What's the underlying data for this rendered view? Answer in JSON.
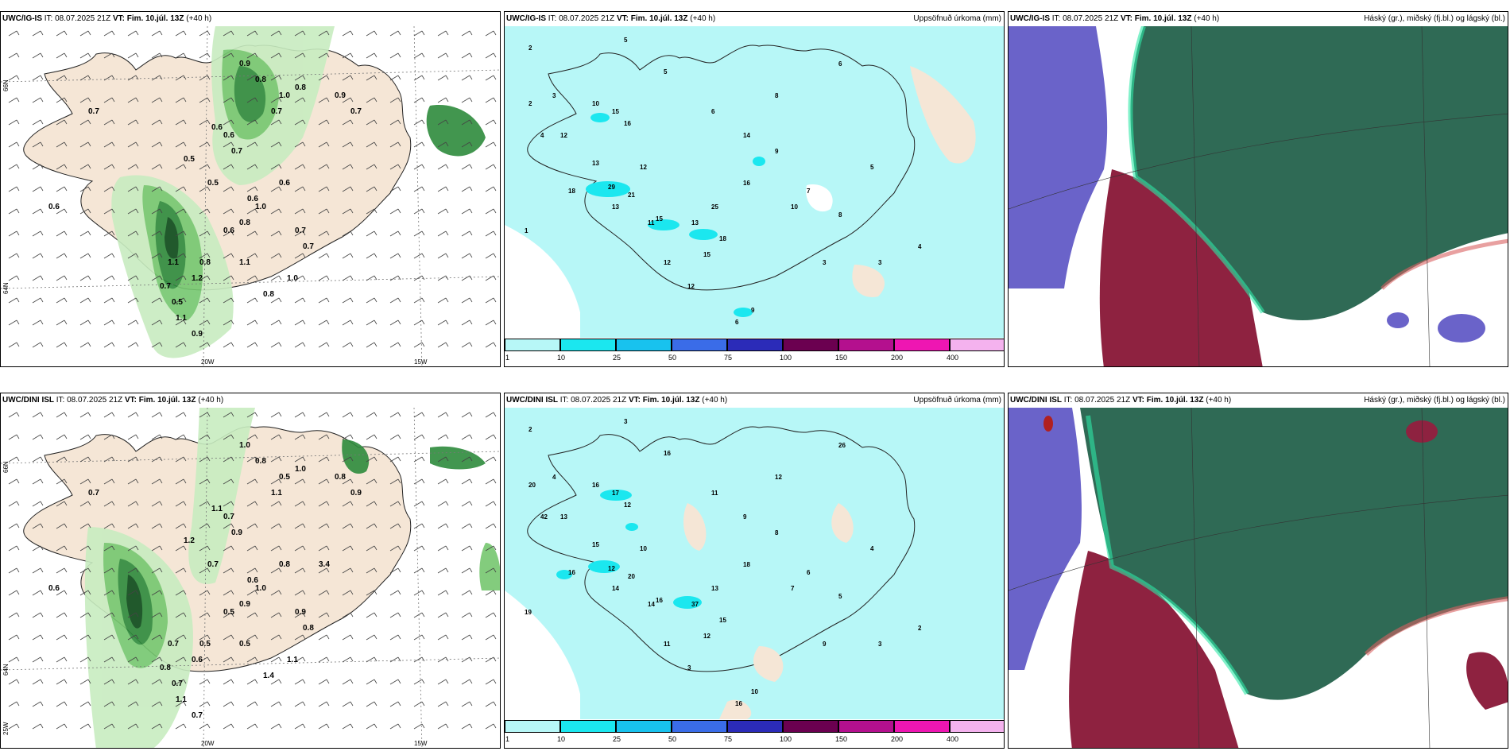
{
  "panels": {
    "p1": {
      "model": "UWC/IG-IS",
      "it_label": "IT:",
      "it": "08.07.2025 21Z",
      "vt_label": "VT:",
      "vt": "Fim. 10.júl. 13Z",
      "lead": "(+40 h)",
      "right_title": ""
    },
    "p2": {
      "model": "UWC/IG-IS",
      "it_label": "IT:",
      "it": "08.07.2025 21Z",
      "vt_label": "VT:",
      "vt": "Fim. 10.júl. 13Z",
      "lead": "(+40 h)",
      "right_title": "Uppsöfnuð úrkoma (mm)"
    },
    "p3": {
      "model": "UWC/IG-IS",
      "it_label": "IT:",
      "it": "08.07.2025 21Z",
      "vt_label": "VT:",
      "vt": "Fim. 10.júl. 13Z",
      "lead": "(+40 h)",
      "right_title": "Háský (gr.), miðský (fj.bl.) og lágský (bl.)"
    },
    "p4": {
      "model": "UWC/DINI ISL",
      "it_label": "IT:",
      "it": "08.07.2025 21Z",
      "vt_label": "VT:",
      "vt": "Fim. 10.júl. 13Z",
      "lead": "(+40 h)",
      "right_title": ""
    },
    "p5": {
      "model": "UWC/DINI ISL",
      "it_label": "IT:",
      "it": "08.07.2025 21Z",
      "vt_label": "VT:",
      "vt": "Fim. 10.júl. 13Z",
      "lead": "(+40 h)",
      "right_title": "Uppsöfnuð úrkoma (mm)"
    },
    "p6": {
      "model": "UWC/DINI ISL",
      "it_label": "IT:",
      "it": "08.07.2025 21Z",
      "vt_label": "VT:",
      "vt": "Fim. 10.júl. 13Z",
      "lead": "(+40 h)",
      "right_title": "Háský (gr.), miðský (fj.bl.) og lágský (bl.)"
    }
  },
  "axis_labels": {
    "lat_top": "66N",
    "lat_bottom": "64N",
    "lat_corner": "25W",
    "lon_left": "20W",
    "lon_right": "15W"
  },
  "colorbar": {
    "ticks": [
      "1",
      "10",
      "25",
      "50",
      "75",
      "100",
      "150",
      "200",
      "400"
    ],
    "colors": [
      "#b7f7f7",
      "#1be7ef",
      "#18c2ee",
      "#3a6ce8",
      "#2b2bb8",
      "#6b0050",
      "#b4108e",
      "#ee16b2",
      "#f4b2ee"
    ]
  },
  "colors": {
    "land": "#f5e6d6",
    "green_light": "#c8ecc0",
    "green_mid": "#75c76f",
    "green_dark": "#2e8b3c",
    "green_darkest": "#0b4a1a",
    "precip": "#b7f7f7",
    "cloud_high": "#6a63c9",
    "cloud_mid": "#8e2240",
    "cloud_low": "#2f6a55"
  },
  "wind_values_top": [
    {
      "t": "0.7"
    },
    {
      "t": "0.6"
    },
    {
      "t": "0.9"
    },
    {
      "t": "0.8"
    },
    {
      "t": "1.0"
    },
    {
      "t": "0.7"
    },
    {
      "t": "0.8"
    },
    {
      "t": "0.9"
    },
    {
      "t": "0.7"
    },
    {
      "t": "0.6"
    },
    {
      "t": "0.5"
    },
    {
      "t": "0.6"
    },
    {
      "t": "0.7"
    },
    {
      "t": "0.5"
    },
    {
      "t": "0.6"
    },
    {
      "t": "0.8"
    },
    {
      "t": "1.0"
    },
    {
      "t": "0.6"
    },
    {
      "t": "0.7"
    },
    {
      "t": "1.1"
    },
    {
      "t": "1.2"
    },
    {
      "t": "0.8"
    },
    {
      "t": "0.7"
    },
    {
      "t": "0.5"
    },
    {
      "t": "1.1"
    },
    {
      "t": "0.9"
    },
    {
      "t": "0.6"
    },
    {
      "t": "1.1"
    },
    {
      "t": "0.8"
    },
    {
      "t": "1.0"
    },
    {
      "t": "0.7"
    }
  ],
  "wind_values_bottom": [
    {
      "t": "0.7"
    },
    {
      "t": "0.6"
    },
    {
      "t": "1.0"
    },
    {
      "t": "0.8"
    },
    {
      "t": "0.5"
    },
    {
      "t": "1.1"
    },
    {
      "t": "1.0"
    },
    {
      "t": "0.8"
    },
    {
      "t": "0.9"
    },
    {
      "t": "1.1"
    },
    {
      "t": "1.2"
    },
    {
      "t": "0.7"
    },
    {
      "t": "0.9"
    },
    {
      "t": "0.7"
    },
    {
      "t": "0.6"
    },
    {
      "t": "0.9"
    },
    {
      "t": "1.0"
    },
    {
      "t": "0.8"
    },
    {
      "t": "0.9"
    },
    {
      "t": "0.7"
    },
    {
      "t": "0.6"
    },
    {
      "t": "0.5"
    },
    {
      "t": "0.8"
    },
    {
      "t": "0.7"
    },
    {
      "t": "1.1"
    },
    {
      "t": "0.7"
    },
    {
      "t": "0.5"
    },
    {
      "t": "0.5"
    },
    {
      "t": "1.4"
    },
    {
      "t": "1.1"
    },
    {
      "t": "0.8"
    },
    {
      "t": "3.4"
    }
  ],
  "precip_values_top": [
    {
      "t": "2"
    },
    {
      "t": "5"
    },
    {
      "t": "3"
    },
    {
      "t": "5"
    },
    {
      "t": "6"
    },
    {
      "t": "8"
    },
    {
      "t": "6"
    },
    {
      "t": "1"
    },
    {
      "t": "2"
    },
    {
      "t": "4"
    },
    {
      "t": "10"
    },
    {
      "t": "12"
    },
    {
      "t": "15"
    },
    {
      "t": "16"
    },
    {
      "t": "13"
    },
    {
      "t": "13"
    },
    {
      "t": "18"
    },
    {
      "t": "29"
    },
    {
      "t": "21"
    },
    {
      "t": "12"
    },
    {
      "t": "11"
    },
    {
      "t": "15"
    },
    {
      "t": "14"
    },
    {
      "t": "9"
    },
    {
      "t": "10"
    },
    {
      "t": "7"
    },
    {
      "t": "8"
    },
    {
      "t": "5"
    },
    {
      "t": "3"
    },
    {
      "t": "4"
    },
    {
      "t": "12"
    },
    {
      "t": "18"
    },
    {
      "t": "16"
    },
    {
      "t": "25"
    },
    {
      "t": "13"
    },
    {
      "t": "15"
    },
    {
      "t": "12"
    },
    {
      "t": "6"
    },
    {
      "t": "9"
    },
    {
      "t": "3"
    }
  ],
  "precip_values_bottom": [
    {
      "t": "2"
    },
    {
      "t": "3"
    },
    {
      "t": "4"
    },
    {
      "t": "16"
    },
    {
      "t": "11"
    },
    {
      "t": "12"
    },
    {
      "t": "26"
    },
    {
      "t": "19"
    },
    {
      "t": "20"
    },
    {
      "t": "42"
    },
    {
      "t": "16"
    },
    {
      "t": "13"
    },
    {
      "t": "17"
    },
    {
      "t": "12"
    },
    {
      "t": "15"
    },
    {
      "t": "14"
    },
    {
      "t": "16"
    },
    {
      "t": "12"
    },
    {
      "t": "20"
    },
    {
      "t": "10"
    },
    {
      "t": "14"
    },
    {
      "t": "16"
    },
    {
      "t": "9"
    },
    {
      "t": "8"
    },
    {
      "t": "7"
    },
    {
      "t": "6"
    },
    {
      "t": "5"
    },
    {
      "t": "4"
    },
    {
      "t": "3"
    },
    {
      "t": "2"
    },
    {
      "t": "11"
    },
    {
      "t": "15"
    },
    {
      "t": "18"
    },
    {
      "t": "13"
    },
    {
      "t": "37"
    },
    {
      "t": "12"
    },
    {
      "t": "3"
    },
    {
      "t": "16"
    },
    {
      "t": "10"
    },
    {
      "t": "9"
    }
  ]
}
